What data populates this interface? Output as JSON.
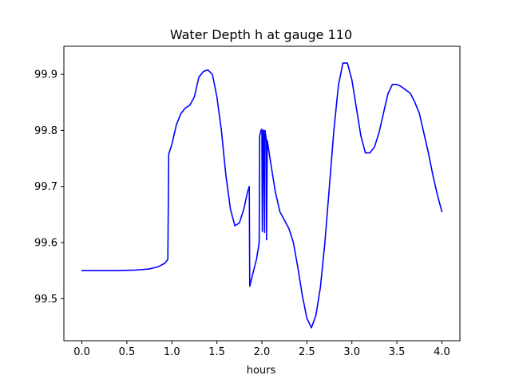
{
  "chart_data": {
    "type": "line",
    "title": "Water Depth h at gauge 110",
    "xlabel": "hours",
    "ylabel": "",
    "xlim": [
      -0.2,
      4.2
    ],
    "ylim": [
      99.425,
      99.95
    ],
    "grid": false,
    "xticks": [
      0.0,
      0.5,
      1.0,
      1.5,
      2.0,
      2.5,
      3.0,
      3.5,
      4.0
    ],
    "xtick_labels": [
      "0.0",
      "0.5",
      "1.0",
      "1.5",
      "2.0",
      "2.5",
      "3.0",
      "3.5",
      "4.0"
    ],
    "yticks": [
      99.5,
      99.6,
      99.7,
      99.8,
      99.9
    ],
    "ytick_labels": [
      "99.5",
      "99.6",
      "99.7",
      "99.8",
      "99.9"
    ],
    "series": [
      {
        "color": "#0000ff",
        "x": [
          0.0,
          0.2,
          0.4,
          0.6,
          0.75,
          0.85,
          0.92,
          0.955,
          0.965,
          1.0,
          1.05,
          1.1,
          1.15,
          1.2,
          1.25,
          1.3,
          1.35,
          1.4,
          1.45,
          1.5,
          1.55,
          1.6,
          1.65,
          1.7,
          1.75,
          1.8,
          1.84,
          1.86,
          1.865,
          1.9,
          1.94,
          1.97,
          1.975,
          1.99,
          2.0,
          2.005,
          2.015,
          2.02,
          2.03,
          2.035,
          2.05,
          2.052,
          2.06,
          2.1,
          2.15,
          2.2,
          2.25,
          2.3,
          2.35,
          2.4,
          2.45,
          2.5,
          2.55,
          2.6,
          2.65,
          2.7,
          2.75,
          2.8,
          2.85,
          2.9,
          2.95,
          3.0,
          3.05,
          3.1,
          3.15,
          3.2,
          3.25,
          3.3,
          3.35,
          3.4,
          3.45,
          3.5,
          3.55,
          3.6,
          3.65,
          3.7,
          3.75,
          3.8,
          3.85,
          3.9,
          3.95,
          4.0
        ],
        "y": [
          99.55,
          99.55,
          99.55,
          99.551,
          99.553,
          99.557,
          99.563,
          99.57,
          99.758,
          99.775,
          99.81,
          99.83,
          99.84,
          99.845,
          99.86,
          99.895,
          99.905,
          99.908,
          99.9,
          99.86,
          99.8,
          99.72,
          99.66,
          99.63,
          99.635,
          99.66,
          99.69,
          99.7,
          99.522,
          99.545,
          99.57,
          99.6,
          99.79,
          99.8,
          99.802,
          99.62,
          99.8,
          99.8,
          99.618,
          99.8,
          99.782,
          99.605,
          99.782,
          99.74,
          99.69,
          99.655,
          99.64,
          99.625,
          99.6,
          99.555,
          99.505,
          99.465,
          99.448,
          99.47,
          99.52,
          99.6,
          99.7,
          99.8,
          99.88,
          99.92,
          99.92,
          99.89,
          99.84,
          99.79,
          99.76,
          99.76,
          99.77,
          99.795,
          99.83,
          99.865,
          99.882,
          99.882,
          99.878,
          99.872,
          99.866,
          99.85,
          99.83,
          99.795,
          99.76,
          99.72,
          99.685,
          99.655
        ]
      }
    ]
  }
}
